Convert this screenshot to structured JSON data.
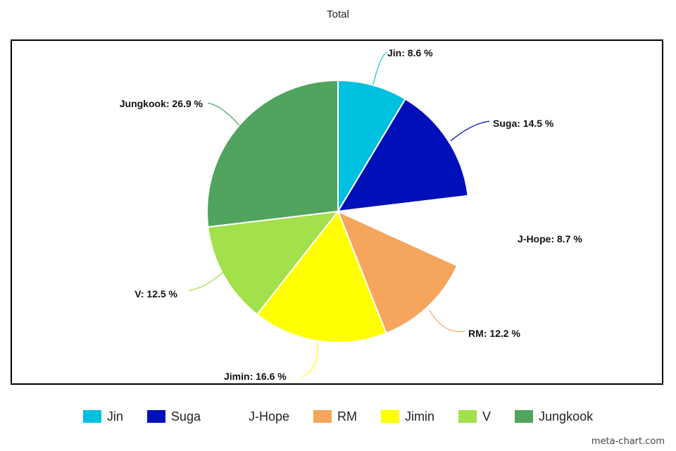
{
  "chart_data": {
    "type": "pie",
    "title": "Total",
    "slices": [
      {
        "label": "Jin",
        "value": 8.6,
        "display": "Jin: 8.6 %",
        "color": "#00c0e0",
        "exploded": true
      },
      {
        "label": "Suga",
        "value": 14.5,
        "display": "Suga: 14.5 %",
        "color": "#0010b8",
        "exploded": true
      },
      {
        "label": "J-Hope",
        "value": 8.7,
        "display": "J-Hope: 8.7 %",
        "color": "#ffffff",
        "exploded": false
      },
      {
        "label": "RM",
        "value": 12.2,
        "display": "RM: 12.2 %",
        "color": "#f5a55c",
        "exploded": false
      },
      {
        "label": "Jimin",
        "value": 16.6,
        "display": "Jimin: 16.6 %",
        "color": "#ffff00",
        "exploded": false
      },
      {
        "label": "V",
        "value": 12.5,
        "display": "V: 12.5 %",
        "color": "#a2e04c",
        "exploded": false
      },
      {
        "label": "Jungkook",
        "value": 26.9,
        "display": "Jungkook: 26.9 %",
        "color": "#50a45e",
        "exploded": false
      }
    ],
    "legend_position": "bottom"
  },
  "watermark": "meta-chart.com"
}
